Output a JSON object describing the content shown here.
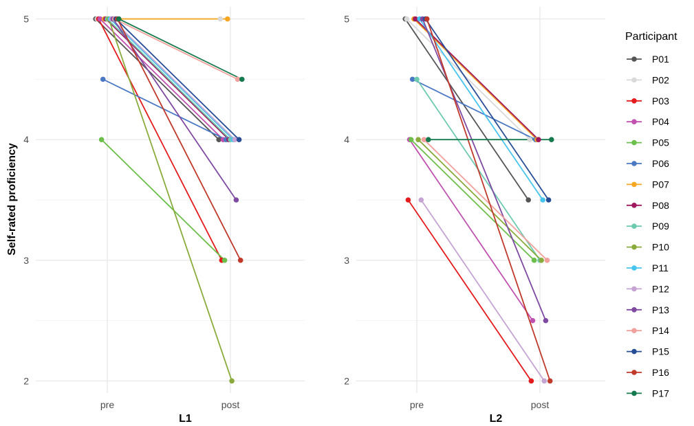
{
  "chart_data": {
    "type": "line",
    "ylabel": "Self-rated proficiency",
    "ylim": [
      1.9,
      5.1
    ],
    "yticks": [
      "2",
      "3",
      "4",
      "5"
    ],
    "x_categories": [
      "pre",
      "post"
    ],
    "grid": true,
    "legend_title": "Participant",
    "legend_position": "right",
    "participants": [
      {
        "name": "P01",
        "color": "#555555"
      },
      {
        "name": "P02",
        "color": "#d9d9d9"
      },
      {
        "name": "P03",
        "color": "#e41a1c"
      },
      {
        "name": "P04",
        "color": "#c051b0"
      },
      {
        "name": "P05",
        "color": "#6cbf4b"
      },
      {
        "name": "P06",
        "color": "#4a78c4"
      },
      {
        "name": "P07",
        "color": "#f5a623"
      },
      {
        "name": "P08",
        "color": "#a0195e"
      },
      {
        "name": "P09",
        "color": "#6dcaaf"
      },
      {
        "name": "P10",
        "color": "#8aab3c"
      },
      {
        "name": "P11",
        "color": "#45c4ef"
      },
      {
        "name": "P12",
        "color": "#c5a3d3"
      },
      {
        "name": "P13",
        "color": "#7e49a0"
      },
      {
        "name": "P14",
        "color": "#f1a09b"
      },
      {
        "name": "P15",
        "color": "#264d96"
      },
      {
        "name": "P16",
        "color": "#c0392b"
      },
      {
        "name": "P17",
        "color": "#157a4e"
      }
    ],
    "panels": [
      {
        "label": "L1",
        "series": [
          {
            "name": "P01",
            "pre": 5,
            "post": 4
          },
          {
            "name": "P02",
            "pre": 5,
            "post": 5
          },
          {
            "name": "P03",
            "pre": 5,
            "post": 3
          },
          {
            "name": "P04",
            "pre": 5,
            "post": 4
          },
          {
            "name": "P05",
            "pre": 4,
            "post": 3
          },
          {
            "name": "P06",
            "pre": 4.5,
            "post": 4
          },
          {
            "name": "P07",
            "pre": 5,
            "post": 5
          },
          {
            "name": "P08",
            "pre": 5,
            "post": 4
          },
          {
            "name": "P09",
            "pre": 5,
            "post": 4
          },
          {
            "name": "P10",
            "pre": 5,
            "post": 2
          },
          {
            "name": "P11",
            "pre": 5,
            "post": 4
          },
          {
            "name": "P12",
            "pre": 5,
            "post": 4
          },
          {
            "name": "P13",
            "pre": 5,
            "post": 3.5
          },
          {
            "name": "P14",
            "pre": 5,
            "post": 4.5
          },
          {
            "name": "P15",
            "pre": 5,
            "post": 4
          },
          {
            "name": "P16",
            "pre": 5,
            "post": 3
          },
          {
            "name": "P17",
            "pre": 5,
            "post": 4.5
          }
        ]
      },
      {
        "label": "L2",
        "series": [
          {
            "name": "P01",
            "pre": 5,
            "post": 3.5
          },
          {
            "name": "P02",
            "pre": 5,
            "post": 4
          },
          {
            "name": "P03",
            "pre": 3.5,
            "post": 2
          },
          {
            "name": "P04",
            "pre": 4,
            "post": 2.5
          },
          {
            "name": "P05",
            "pre": 4,
            "post": 3
          },
          {
            "name": "P06",
            "pre": 4.5,
            "post": 4
          },
          {
            "name": "P07",
            "pre": 5,
            "post": 4
          },
          {
            "name": "P08",
            "pre": 5,
            "post": 4
          },
          {
            "name": "P09",
            "pre": 4.5,
            "post": 3
          },
          {
            "name": "P10",
            "pre": 4,
            "post": 3
          },
          {
            "name": "P11",
            "pre": 5,
            "post": 3.5
          },
          {
            "name": "P12",
            "pre": 3.5,
            "post": 2
          },
          {
            "name": "P13",
            "pre": 5,
            "post": 2.5
          },
          {
            "name": "P14",
            "pre": 4,
            "post": 3
          },
          {
            "name": "P15",
            "pre": 5,
            "post": 3.5
          },
          {
            "name": "P16",
            "pre": 5,
            "post": 2
          },
          {
            "name": "P17",
            "pre": 4,
            "post": 4
          }
        ]
      }
    ]
  }
}
